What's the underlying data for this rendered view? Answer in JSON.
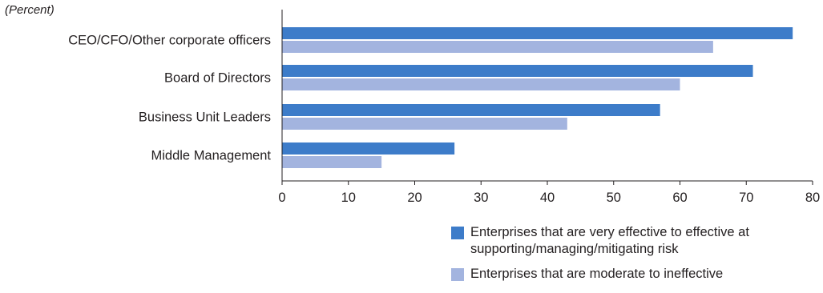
{
  "unit_label": "(Percent)",
  "colors": {
    "effective": "#3d7cc9",
    "moderate": "#a3b4df",
    "axis": "#231f20"
  },
  "chart_data": {
    "type": "bar",
    "orientation": "horizontal",
    "categories": [
      "CEO/CFO/Other corporate officers",
      "Board of Directors",
      "Business Unit Leaders",
      "Middle Management"
    ],
    "series": [
      {
        "name": "Enterprises that are very effective to effective at supporting/managing/mitigating risk",
        "values": [
          77,
          71,
          57,
          26
        ]
      },
      {
        "name": "Enterprises that are moderate to ineffective",
        "values": [
          65,
          60,
          43,
          15
        ]
      }
    ],
    "xlim": [
      0,
      80
    ],
    "xticks": [
      0,
      10,
      20,
      30,
      40,
      50,
      60,
      70,
      80
    ],
    "grid": false,
    "legend_position": "bottom-right"
  },
  "legend": [
    {
      "lines": [
        "Enterprises that are very effective to effective at",
        "supporting/managing/mitigating risk"
      ]
    },
    {
      "lines": [
        "Enterprises that are moderate to ineffective"
      ]
    }
  ]
}
